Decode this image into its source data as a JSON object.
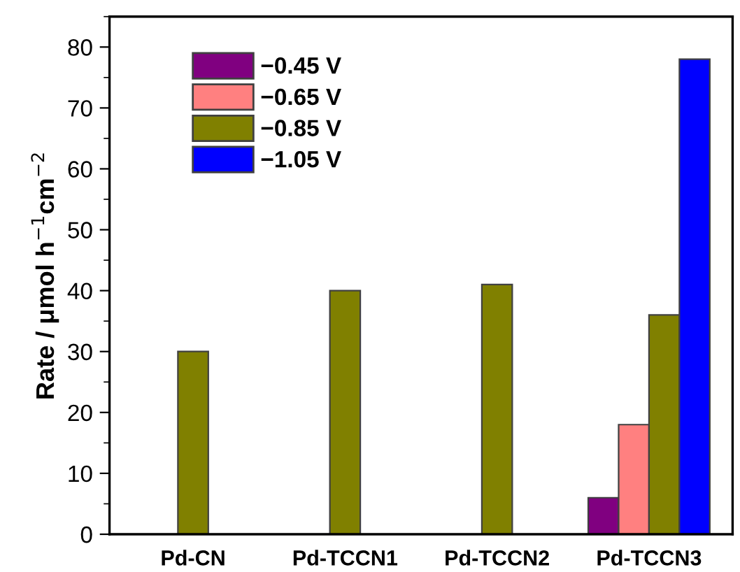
{
  "chart_data": {
    "type": "bar",
    "ylabel": "Rate / μmol h$^{−1}$cm$^{−2}$",
    "categories": [
      "Pd-CN",
      "Pd-TCCN1",
      "Pd-TCCN2",
      "Pd-TCCN3"
    ],
    "series": [
      {
        "name": "−0.45 V",
        "color": "#800080",
        "values": [
          null,
          null,
          null,
          6
        ]
      },
      {
        "name": "−0.65 V",
        "color": "#ff8080",
        "values": [
          null,
          null,
          null,
          18
        ]
      },
      {
        "name": "−0.85 V",
        "color": "#808000",
        "values": [
          30,
          40,
          41,
          36
        ]
      },
      {
        "name": "−1.05 V",
        "color": "#0000ff",
        "values": [
          null,
          null,
          null,
          78
        ]
      }
    ],
    "ylim": [
      0,
      85
    ],
    "yticks": [
      0,
      10,
      20,
      30,
      40,
      50,
      60,
      70,
      80
    ],
    "grid": false,
    "legend": "top left"
  }
}
